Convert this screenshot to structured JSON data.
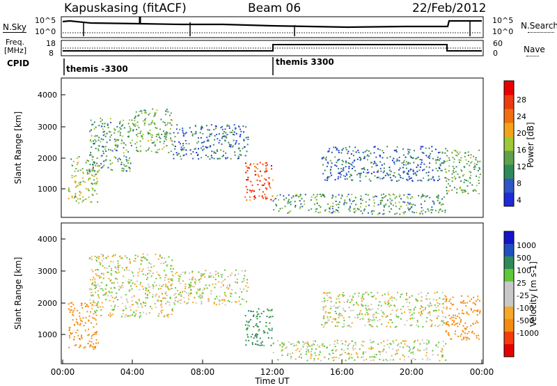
{
  "header": {
    "station": "Kapuskasing (fitACF)",
    "beam": "Beam 06",
    "date": "22/Feb/2012"
  },
  "left_labels": {
    "nsky": "N.Sky",
    "freq_line1": "Freq.",
    "freq_line2": "[MHz]",
    "cpid": "CPID"
  },
  "right_labels": {
    "nsearch": "N.Search",
    "nave": "Nave"
  },
  "axis_ticks": {
    "noise_left": [
      "10^5",
      "10^0"
    ],
    "noise_right": [
      "10^5",
      "10^0"
    ],
    "freq_left": [
      "18",
      "8"
    ],
    "nave_right": [
      "60",
      "0"
    ]
  },
  "cpid_labels": [
    "themis -3300",
    "themis 3300"
  ],
  "colors": {
    "power_scale": [
      "#1d2ad6",
      "#2f55c6",
      "#2f8a5a",
      "#5fa04a",
      "#9cc83a",
      "#f3a31a",
      "#f07010",
      "#ee3a10",
      "#e80000"
    ],
    "velocity_scale": [
      "#e50000",
      "#f23c0a",
      "#f38c0f",
      "#f6a82a",
      "#c8c8c8",
      "#c8c8c8",
      "#5ec838",
      "#2f8a5a",
      "#2050c0",
      "#1414c8"
    ],
    "ground_scatter": "#c8c8c8"
  },
  "chart_data": [
    {
      "type": "heatmap",
      "title": "",
      "panel": "power",
      "xlabel": "",
      "ylabel": "Slant Range [km]",
      "xlim": [
        0,
        24
      ],
      "ylim": [
        180,
        4500
      ],
      "xticks": [],
      "yticks": [
        "1000",
        "2000",
        "3000",
        "4000"
      ],
      "colorbar": {
        "label": "Power [dB]",
        "range": [
          0,
          30
        ],
        "ticks": [
          "28",
          "24",
          "20",
          "16",
          "12",
          "8",
          "4"
        ]
      },
      "regions": [
        {
          "t": [
            0.3,
            2.0
          ],
          "range": [
            600,
            2100
          ],
          "level": 14
        },
        {
          "t": [
            1.5,
            4.0
          ],
          "range": [
            1600,
            3300
          ],
          "level": 10
        },
        {
          "t": [
            4.0,
            6.3
          ],
          "range": [
            2200,
            3600
          ],
          "level": 12
        },
        {
          "t": [
            6.3,
            10.6
          ],
          "range": [
            2000,
            3100
          ],
          "level": 7
        },
        {
          "t": [
            10.4,
            12.0
          ],
          "range": [
            700,
            1900
          ],
          "level": 24
        },
        {
          "t": [
            12.0,
            21.9
          ],
          "range": [
            250,
            900
          ],
          "level": 10
        },
        {
          "t": [
            14.8,
            21.9
          ],
          "range": [
            1300,
            2400
          ],
          "level": 6
        },
        {
          "t": [
            21.9,
            23.9
          ],
          "range": [
            900,
            2300
          ],
          "level": 12
        }
      ]
    },
    {
      "type": "heatmap",
      "title": "",
      "panel": "velocity",
      "xlabel": "Time UT",
      "ylabel": "Slant Range [km]",
      "xlim": [
        0,
        24
      ],
      "ylim": [
        180,
        4500
      ],
      "xticks": [
        "00:00",
        "04:00",
        "08:00",
        "12:00",
        "16:00",
        "20:00",
        "00:00"
      ],
      "yticks": [
        "1000",
        "2000",
        "3000",
        "4000"
      ],
      "colorbar": {
        "label": "Velocity [m s-1]",
        "range": [
          -1000,
          1000
        ],
        "ticks": [
          "1000",
          "500",
          "100",
          "25",
          "-25",
          "-100",
          "-500",
          "-1000"
        ]
      },
      "regions": [
        {
          "t": [
            0.3,
            2.0
          ],
          "range": [
            600,
            2100
          ],
          "velocity": -300
        },
        {
          "t": [
            1.5,
            6.3
          ],
          "range": [
            1600,
            3600
          ],
          "velocity": 0
        },
        {
          "t": [
            6.3,
            10.6
          ],
          "range": [
            2000,
            3100
          ],
          "velocity": 0
        },
        {
          "t": [
            10.4,
            12.0
          ],
          "range": [
            700,
            1900
          ],
          "velocity": 150
        },
        {
          "t": [
            12.0,
            21.9
          ],
          "range": [
            250,
            900
          ],
          "velocity": 0
        },
        {
          "t": [
            14.8,
            21.9
          ],
          "range": [
            1300,
            2400
          ],
          "velocity": 0
        },
        {
          "t": [
            21.9,
            23.9
          ],
          "range": [
            900,
            2300
          ],
          "velocity": -200
        }
      ]
    }
  ]
}
